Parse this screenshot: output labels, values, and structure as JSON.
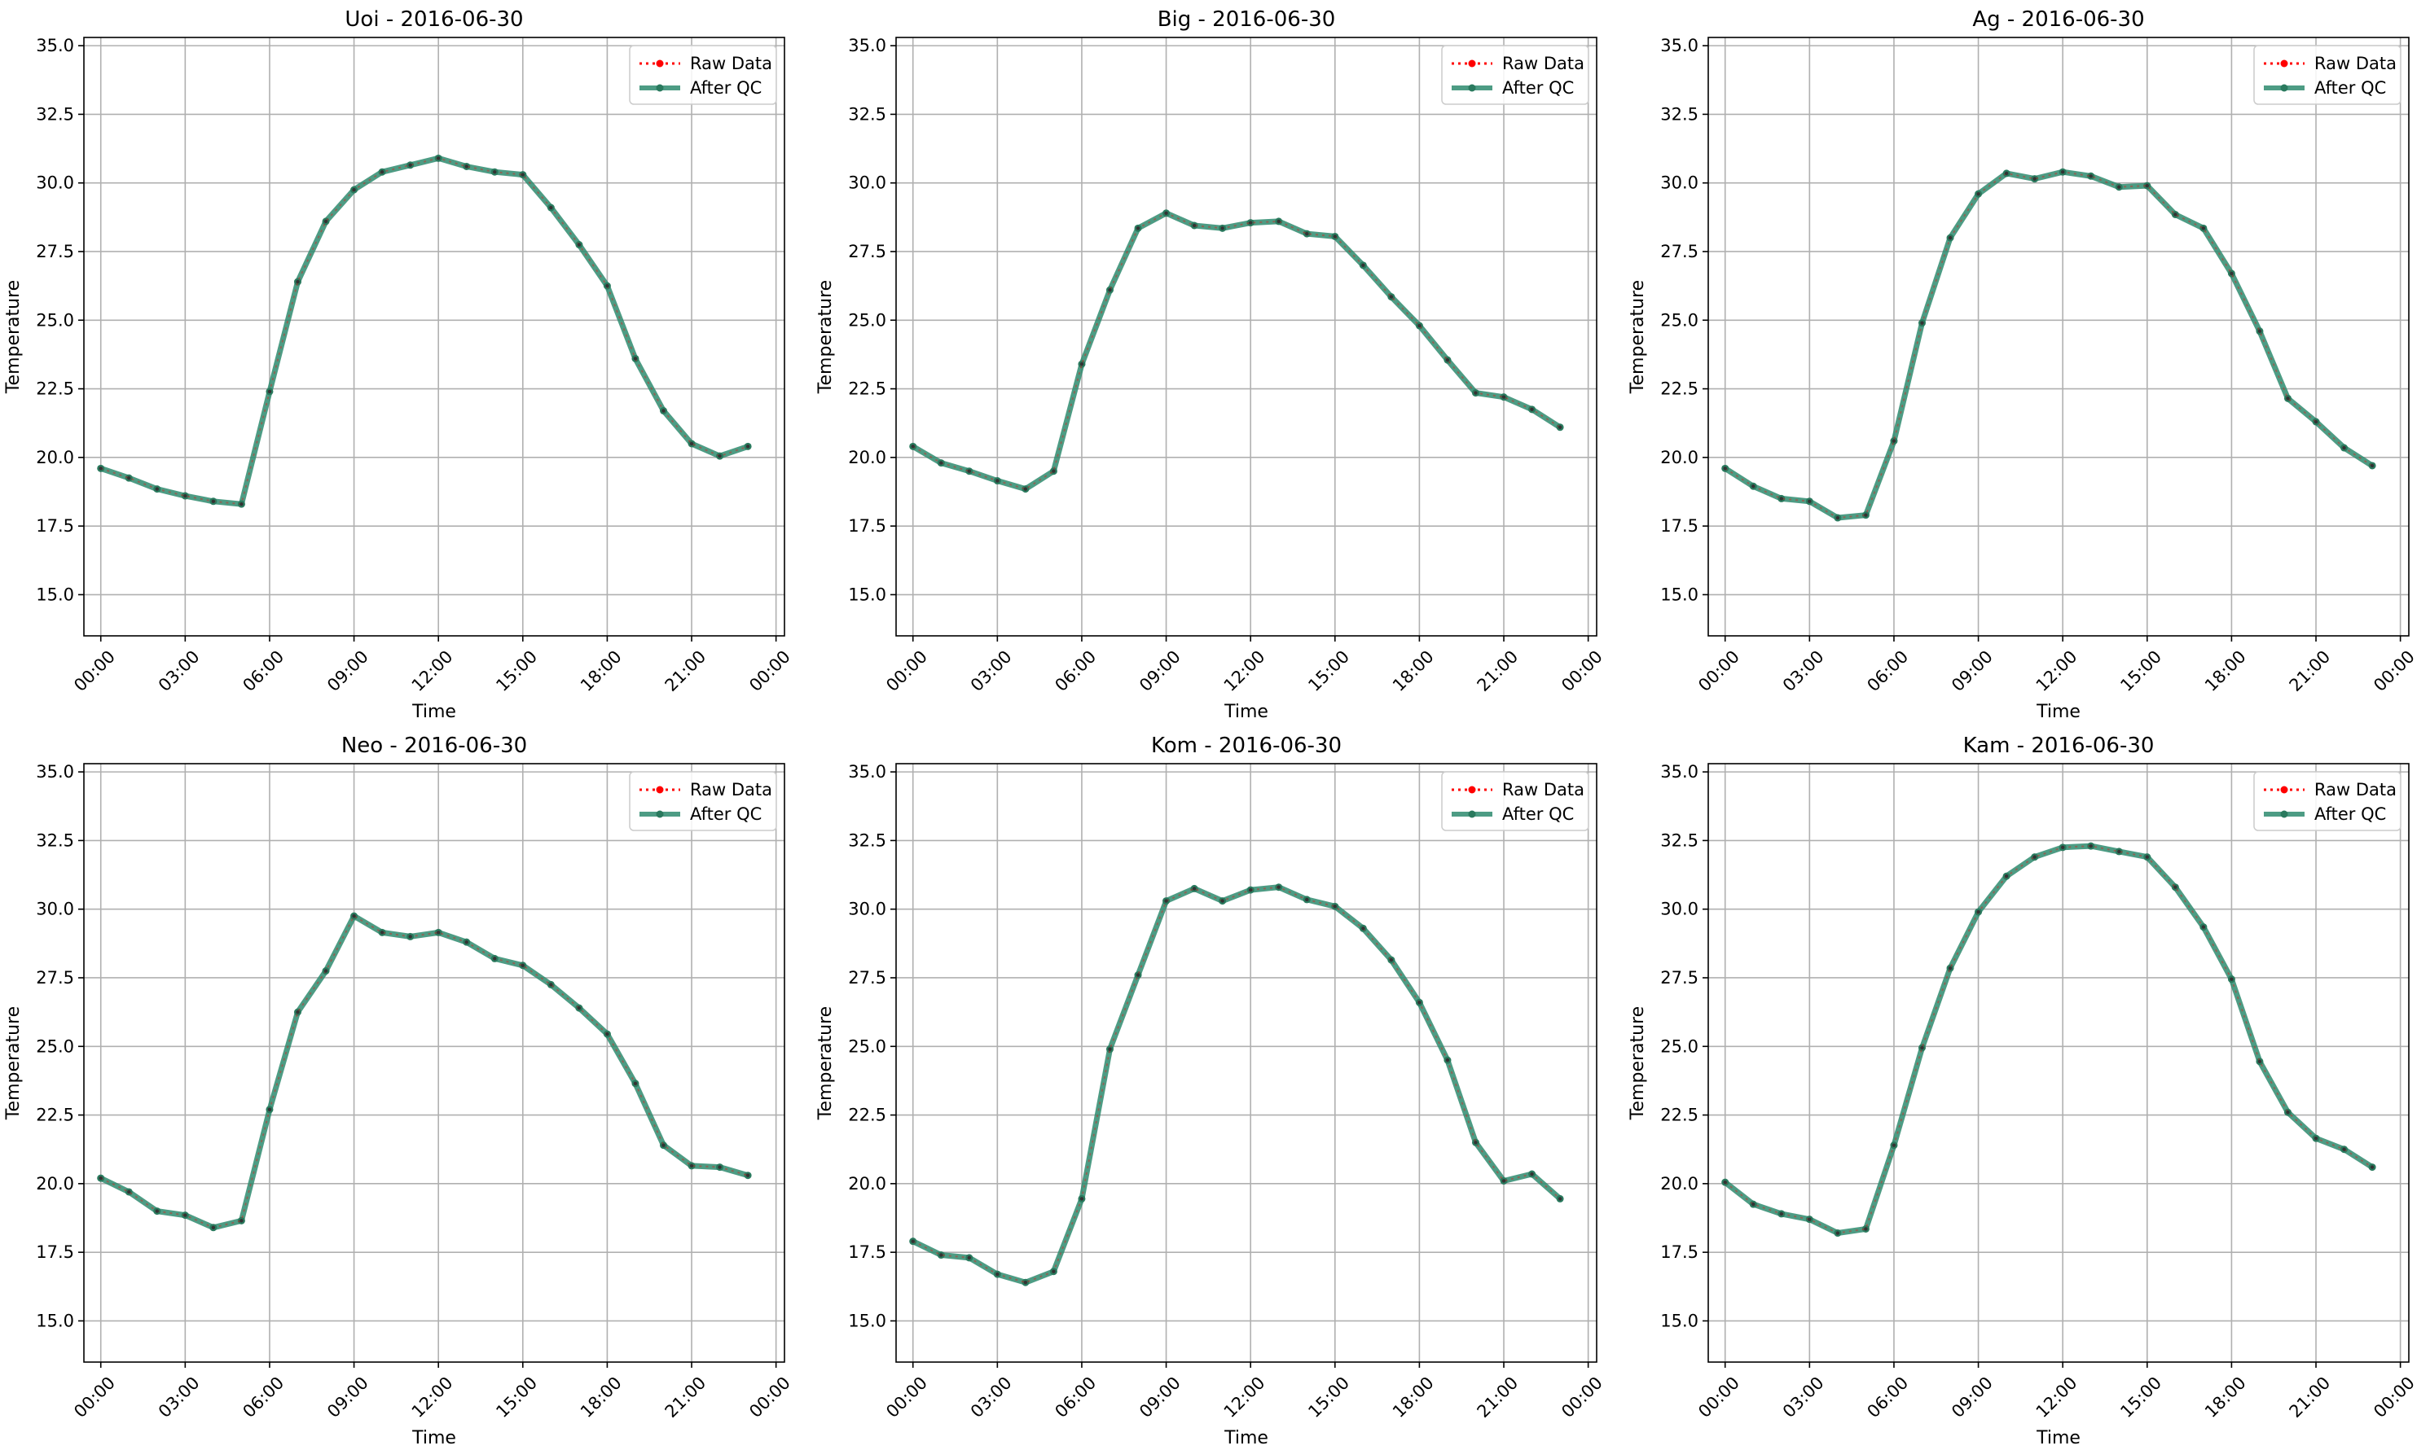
{
  "figure": {
    "background": "#ffffff"
  },
  "legend": {
    "raw_label": "Raw Data",
    "qc_label": "After QC",
    "placement": "upper right"
  },
  "colors": {
    "raw": "#ff0000",
    "qc": "#2e8b6e",
    "qc_marker": "#2a7a5e",
    "grid": "#b0b0b0"
  },
  "chart_data": [
    {
      "type": "line",
      "title": "Uoi - 2016-06-30",
      "xlabel": "Time",
      "ylabel": "Temperature",
      "ylim": [
        13.5,
        35.3
      ],
      "yticks": [
        "15.0",
        "17.5",
        "20.0",
        "22.5",
        "25.0",
        "27.5",
        "30.0",
        "32.5",
        "35.0"
      ],
      "xticks": [
        "00:00",
        "03:00",
        "06:00",
        "09:00",
        "12:00",
        "15:00",
        "18:00",
        "21:00",
        "00:00"
      ],
      "grid": true,
      "x": [
        "00:00",
        "01:00",
        "02:00",
        "03:00",
        "04:00",
        "05:00",
        "06:00",
        "07:00",
        "08:00",
        "09:00",
        "10:00",
        "11:00",
        "12:00",
        "13:00",
        "14:00",
        "15:00",
        "16:00",
        "17:00",
        "18:00",
        "19:00",
        "20:00",
        "21:00",
        "22:00",
        "23:00"
      ],
      "series": [
        {
          "name": "Raw Data",
          "values": [
            19.6,
            19.25,
            18.85,
            18.6,
            18.4,
            18.3,
            22.4,
            26.4,
            28.6,
            29.75,
            30.4,
            30.65,
            30.9,
            30.6,
            30.4,
            30.3,
            29.1,
            27.75,
            26.25,
            23.6,
            21.7,
            20.5,
            20.05,
            20.4
          ]
        },
        {
          "name": "After QC",
          "values": [
            19.6,
            19.25,
            18.85,
            18.6,
            18.4,
            18.3,
            22.4,
            26.4,
            28.6,
            29.75,
            30.4,
            30.65,
            30.9,
            30.6,
            30.4,
            30.3,
            29.1,
            27.75,
            26.25,
            23.6,
            21.7,
            20.5,
            20.05,
            20.4
          ]
        }
      ]
    },
    {
      "type": "line",
      "title": "Big - 2016-06-30",
      "xlabel": "Time",
      "ylabel": "Temperature",
      "ylim": [
        13.5,
        35.3
      ],
      "yticks": [
        "15.0",
        "17.5",
        "20.0",
        "22.5",
        "25.0",
        "27.5",
        "30.0",
        "32.5",
        "35.0"
      ],
      "xticks": [
        "00:00",
        "03:00",
        "06:00",
        "09:00",
        "12:00",
        "15:00",
        "18:00",
        "21:00",
        "00:00"
      ],
      "grid": true,
      "x": [
        "00:00",
        "01:00",
        "02:00",
        "03:00",
        "04:00",
        "05:00",
        "06:00",
        "07:00",
        "08:00",
        "09:00",
        "10:00",
        "11:00",
        "12:00",
        "13:00",
        "14:00",
        "15:00",
        "16:00",
        "17:00",
        "18:00",
        "19:00",
        "20:00",
        "21:00",
        "22:00",
        "23:00"
      ],
      "series": [
        {
          "name": "Raw Data",
          "values": [
            20.4,
            19.8,
            19.5,
            19.15,
            18.85,
            19.5,
            23.4,
            26.1,
            28.35,
            28.9,
            28.45,
            28.35,
            28.55,
            28.6,
            28.15,
            28.05,
            27.0,
            25.85,
            24.8,
            23.55,
            22.35,
            22.2,
            21.75,
            21.1
          ]
        },
        {
          "name": "After QC",
          "values": [
            20.4,
            19.8,
            19.5,
            19.15,
            18.85,
            19.5,
            23.4,
            26.1,
            28.35,
            28.9,
            28.45,
            28.35,
            28.55,
            28.6,
            28.15,
            28.05,
            27.0,
            25.85,
            24.8,
            23.55,
            22.35,
            22.2,
            21.75,
            21.1
          ]
        }
      ]
    },
    {
      "type": "line",
      "title": "Ag - 2016-06-30",
      "xlabel": "Time",
      "ylabel": "Temperature",
      "ylim": [
        13.5,
        35.3
      ],
      "yticks": [
        "15.0",
        "17.5",
        "20.0",
        "22.5",
        "25.0",
        "27.5",
        "30.0",
        "32.5",
        "35.0"
      ],
      "xticks": [
        "00:00",
        "03:00",
        "06:00",
        "09:00",
        "12:00",
        "15:00",
        "18:00",
        "21:00",
        "00:00"
      ],
      "grid": true,
      "x": [
        "00:00",
        "01:00",
        "02:00",
        "03:00",
        "04:00",
        "05:00",
        "06:00",
        "07:00",
        "08:00",
        "09:00",
        "10:00",
        "11:00",
        "12:00",
        "13:00",
        "14:00",
        "15:00",
        "16:00",
        "17:00",
        "18:00",
        "19:00",
        "20:00",
        "21:00",
        "22:00",
        "23:00"
      ],
      "series": [
        {
          "name": "Raw Data",
          "values": [
            19.6,
            18.95,
            18.5,
            18.4,
            17.8,
            17.9,
            20.6,
            24.9,
            28.0,
            29.6,
            30.35,
            30.15,
            30.4,
            30.25,
            29.85,
            29.9,
            28.85,
            28.35,
            26.7,
            24.6,
            22.15,
            21.3,
            20.35,
            19.7
          ]
        },
        {
          "name": "After QC",
          "values": [
            19.6,
            18.95,
            18.5,
            18.4,
            17.8,
            17.9,
            20.6,
            24.9,
            28.0,
            29.6,
            30.35,
            30.15,
            30.4,
            30.25,
            29.85,
            29.9,
            28.85,
            28.35,
            26.7,
            24.6,
            22.15,
            21.3,
            20.35,
            19.7
          ]
        }
      ]
    },
    {
      "type": "line",
      "title": "Neo - 2016-06-30",
      "xlabel": "Time",
      "ylabel": "Temperature",
      "ylim": [
        13.5,
        35.3
      ],
      "yticks": [
        "15.0",
        "17.5",
        "20.0",
        "22.5",
        "25.0",
        "27.5",
        "30.0",
        "32.5",
        "35.0"
      ],
      "xticks": [
        "00:00",
        "03:00",
        "06:00",
        "09:00",
        "12:00",
        "15:00",
        "18:00",
        "21:00",
        "00:00"
      ],
      "grid": true,
      "x": [
        "00:00",
        "01:00",
        "02:00",
        "03:00",
        "04:00",
        "05:00",
        "06:00",
        "07:00",
        "08:00",
        "09:00",
        "10:00",
        "11:00",
        "12:00",
        "13:00",
        "14:00",
        "15:00",
        "16:00",
        "17:00",
        "18:00",
        "19:00",
        "20:00",
        "21:00",
        "22:00",
        "23:00"
      ],
      "series": [
        {
          "name": "Raw Data",
          "values": [
            20.2,
            19.7,
            19.0,
            18.85,
            18.4,
            18.65,
            22.7,
            26.25,
            27.75,
            29.75,
            29.15,
            29.0,
            29.15,
            28.8,
            28.2,
            27.95,
            27.25,
            26.4,
            25.45,
            23.65,
            21.4,
            20.65,
            20.6,
            20.3
          ]
        },
        {
          "name": "After QC",
          "values": [
            20.2,
            19.7,
            19.0,
            18.85,
            18.4,
            18.65,
            22.7,
            26.25,
            27.75,
            29.75,
            29.15,
            29.0,
            29.15,
            28.8,
            28.2,
            27.95,
            27.25,
            26.4,
            25.45,
            23.65,
            21.4,
            20.65,
            20.6,
            20.3
          ]
        }
      ]
    },
    {
      "type": "line",
      "title": "Kom - 2016-06-30",
      "xlabel": "Time",
      "ylabel": "Temperature",
      "ylim": [
        13.5,
        35.3
      ],
      "yticks": [
        "15.0",
        "17.5",
        "20.0",
        "22.5",
        "25.0",
        "27.5",
        "30.0",
        "32.5",
        "35.0"
      ],
      "xticks": [
        "00:00",
        "03:00",
        "06:00",
        "09:00",
        "12:00",
        "15:00",
        "18:00",
        "21:00",
        "00:00"
      ],
      "grid": true,
      "x": [
        "00:00",
        "01:00",
        "02:00",
        "03:00",
        "04:00",
        "05:00",
        "06:00",
        "07:00",
        "08:00",
        "09:00",
        "10:00",
        "11:00",
        "12:00",
        "13:00",
        "14:00",
        "15:00",
        "16:00",
        "17:00",
        "18:00",
        "19:00",
        "20:00",
        "21:00",
        "22:00",
        "23:00"
      ],
      "series": [
        {
          "name": "Raw Data",
          "values": [
            17.9,
            17.4,
            17.3,
            16.7,
            16.4,
            16.8,
            19.45,
            24.9,
            27.6,
            30.3,
            30.75,
            30.3,
            30.7,
            30.8,
            30.35,
            30.1,
            29.3,
            28.15,
            26.6,
            24.5,
            21.5,
            20.1,
            20.35,
            19.45
          ]
        },
        {
          "name": "After QC",
          "values": [
            17.9,
            17.4,
            17.3,
            16.7,
            16.4,
            16.8,
            19.45,
            24.9,
            27.6,
            30.3,
            30.75,
            30.3,
            30.7,
            30.8,
            30.35,
            30.1,
            29.3,
            28.15,
            26.6,
            24.5,
            21.5,
            20.1,
            20.35,
            19.45
          ]
        }
      ]
    },
    {
      "type": "line",
      "title": "Kam - 2016-06-30",
      "xlabel": "Time",
      "ylabel": "Temperature",
      "ylim": [
        13.5,
        35.3
      ],
      "yticks": [
        "15.0",
        "17.5",
        "20.0",
        "22.5",
        "25.0",
        "27.5",
        "30.0",
        "32.5",
        "35.0"
      ],
      "xticks": [
        "00:00",
        "03:00",
        "06:00",
        "09:00",
        "12:00",
        "15:00",
        "18:00",
        "21:00",
        "00:00"
      ],
      "grid": true,
      "x": [
        "00:00",
        "01:00",
        "02:00",
        "03:00",
        "04:00",
        "05:00",
        "06:00",
        "07:00",
        "08:00",
        "09:00",
        "10:00",
        "11:00",
        "12:00",
        "13:00",
        "14:00",
        "15:00",
        "16:00",
        "17:00",
        "18:00",
        "19:00",
        "20:00",
        "21:00",
        "22:00",
        "23:00"
      ],
      "series": [
        {
          "name": "Raw Data",
          "values": [
            20.05,
            19.25,
            18.9,
            18.7,
            18.2,
            18.35,
            21.4,
            24.95,
            27.85,
            29.9,
            31.2,
            31.9,
            32.25,
            32.3,
            32.1,
            31.9,
            30.8,
            29.35,
            27.45,
            24.45,
            22.6,
            21.65,
            21.25,
            20.6
          ]
        },
        {
          "name": "After QC",
          "values": [
            20.05,
            19.25,
            18.9,
            18.7,
            18.2,
            18.35,
            21.4,
            24.95,
            27.85,
            29.9,
            31.2,
            31.9,
            32.25,
            32.3,
            32.1,
            31.9,
            30.8,
            29.35,
            27.45,
            24.45,
            22.6,
            21.65,
            21.25,
            20.6
          ]
        }
      ]
    }
  ]
}
